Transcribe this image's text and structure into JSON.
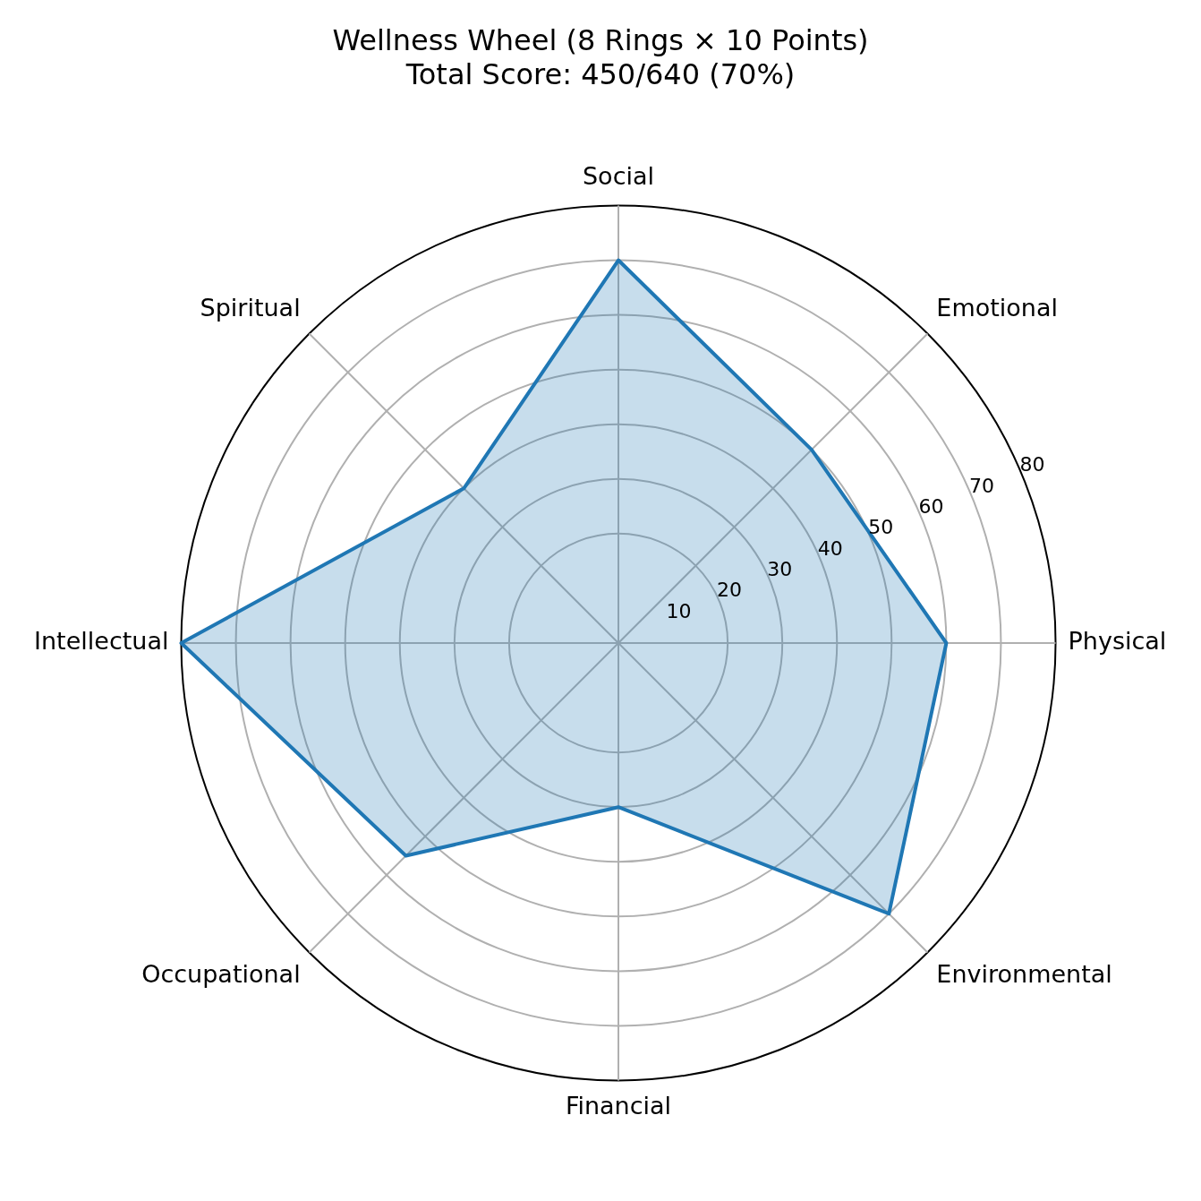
{
  "chart_data": {
    "type": "radar",
    "title": "Wellness Wheel (8 Rings × 10 Points)",
    "subtitle": "Total Score: 450/640 (70%)",
    "categories": [
      "Social",
      "Emotional",
      "Physical",
      "Environmental",
      "Financial",
      "Occupational",
      "Intellectual",
      "Spiritual"
    ],
    "series": [
      {
        "color": "#1f77b4",
        "values": [
          70,
          50,
          60,
          70,
          30,
          55,
          80,
          40
        ]
      }
    ],
    "ylim": [
      0,
      80
    ],
    "yticks": [
      10,
      20,
      30,
      40,
      50,
      60,
      70,
      80
    ],
    "grid": true,
    "legend": false,
    "marker": "none",
    "line_style": "solid"
  }
}
